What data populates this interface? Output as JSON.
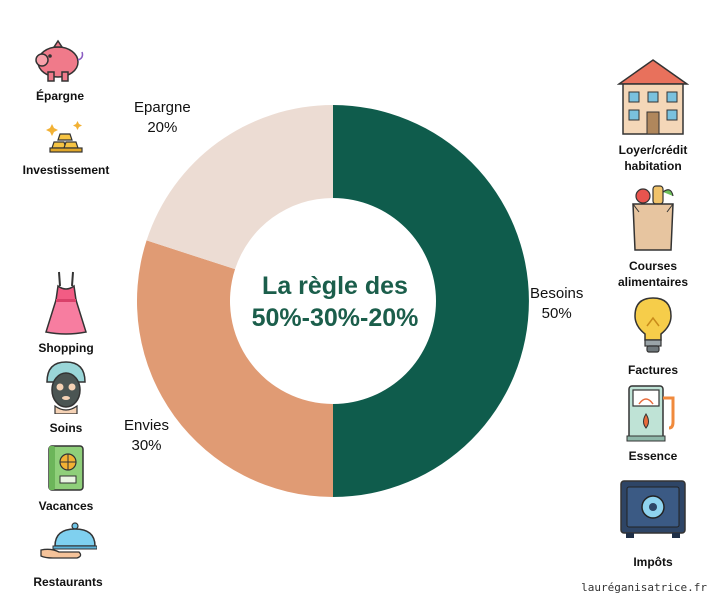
{
  "chart_data": {
    "type": "pie",
    "donut": true,
    "title": "La règle des 50%-30%-20%",
    "title_lines": [
      "La règle des",
      "50%-30%-20%"
    ],
    "slices": [
      {
        "label": "Besoins",
        "value": 50,
        "value_label": "50%",
        "color": "#0f5c4c"
      },
      {
        "label": "Envies",
        "value": 30,
        "value_label": "30%",
        "color": "#e09b74"
      },
      {
        "label": "Epargne",
        "value": 20,
        "value_label": "20%",
        "color": "#ecdcd3"
      }
    ]
  },
  "left_icons": [
    {
      "label": "Épargne",
      "icon": "piggy-bank-icon"
    },
    {
      "label": "Investissement",
      "icon": "gold-bars-icon"
    },
    {
      "label": "Shopping",
      "icon": "dress-icon"
    },
    {
      "label": "Soins",
      "icon": "face-mask-icon"
    },
    {
      "label": "Vacances",
      "icon": "passport-icon"
    },
    {
      "label": "Restaurants",
      "icon": "cloche-icon"
    }
  ],
  "right_icons": [
    {
      "label_lines": [
        "Loyer/crédit",
        "habitation"
      ],
      "icon": "house-icon"
    },
    {
      "label_lines": [
        "Courses",
        "alimentaires"
      ],
      "icon": "grocery-bag-icon"
    },
    {
      "label_lines": [
        "Factures"
      ],
      "icon": "light-bulb-icon"
    },
    {
      "label_lines": [
        "Essence"
      ],
      "icon": "fuel-pump-icon"
    },
    {
      "label_lines": [
        "Impôts"
      ],
      "icon": "safe-icon"
    }
  ],
  "watermark": "lauréganisatrice.fr"
}
